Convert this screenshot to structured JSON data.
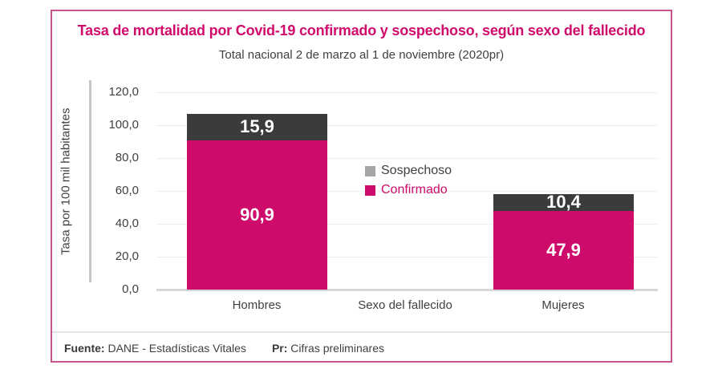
{
  "title": "Tasa de mortalidad por Covid-19 confirmado y sospechoso, según sexo del fallecido",
  "subtitle": "Total nacional 2 de marzo al 1 de noviembre (2020pr)",
  "colors": {
    "accent_pink": "#CE0A6A",
    "title_pink": "#D00B6B",
    "sospechoso_bar": "#3B3B3B",
    "sospechoso_legend_swatch": "#A6A6A6",
    "card_border": "#C9548D",
    "text_gray": "#404040"
  },
  "chart_data": {
    "type": "bar",
    "stacked": true,
    "title": "Tasa de mortalidad por Covid-19 confirmado y sospechoso, según sexo del fallecido",
    "subtitle": "Total nacional 2 de marzo al 1 de noviembre (2020pr)",
    "categories": [
      "Hombres",
      "Mujeres"
    ],
    "series": [
      {
        "name": "Confirmado",
        "values": [
          90.9,
          47.9
        ],
        "color": "#CE0A6A",
        "label_color": "#CE0A6A"
      },
      {
        "name": "Sospechoso",
        "values": [
          15.9,
          10.4
        ],
        "color": "#3B3B3B",
        "legend_color": "#A6A6A6",
        "label_color": "#404040"
      }
    ],
    "xlabel": "Sexo del fallecido",
    "ylabel": "Tasa por 100 mil habitantes",
    "ylim": [
      0,
      120
    ],
    "ytick_step": 20,
    "decimal_separator": ",",
    "grid": "horizontal-dotted",
    "legend_position": "center-between-bars",
    "legend_order": [
      "Sospechoso",
      "Confirmado"
    ],
    "value_labels_shown": true
  },
  "footer": {
    "fuente_label": "Fuente:",
    "fuente_text": "DANE - Estadísticas Vitales",
    "pr_label": "Pr:",
    "pr_text": "Cifras preliminares"
  }
}
